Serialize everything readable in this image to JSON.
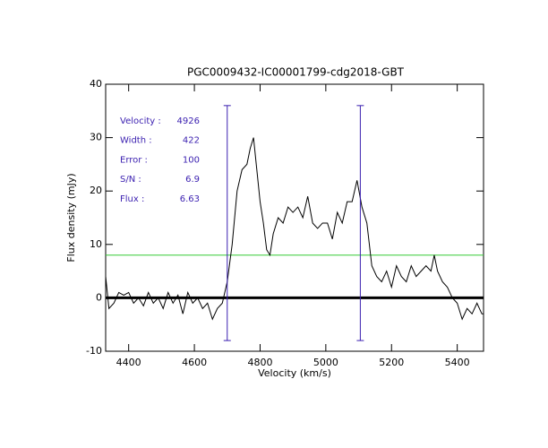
{
  "chart_data": {
    "type": "line",
    "title": "PGC0009432-IC00001799-cdg2018-GBT",
    "x_label": "Velocity (km/s)",
    "y_label": "Flux density (mJy)",
    "xlim": [
      4330,
      5480
    ],
    "ylim": [
      -10,
      40
    ],
    "xticks": [
      4400,
      4600,
      4800,
      5000,
      5200,
      5400
    ],
    "yticks": [
      -10,
      0,
      10,
      20,
      30,
      40
    ],
    "series": [
      {
        "color": "#000000",
        "x": [
          4330,
          4340,
          4355,
          4370,
          4385,
          4400,
          4415,
          4430,
          4445,
          4460,
          4475,
          4490,
          4505,
          4520,
          4535,
          4550,
          4565,
          4580,
          4595,
          4610,
          4625,
          4640,
          4655,
          4670,
          4685,
          4700,
          4715,
          4730,
          4745,
          4760,
          4770,
          4780,
          4790,
          4800,
          4810,
          4820,
          4830,
          4840,
          4855,
          4870,
          4885,
          4900,
          4915,
          4930,
          4945,
          4960,
          4975,
          4990,
          5005,
          5020,
          5035,
          5050,
          5065,
          5080,
          5095,
          5110,
          5125,
          5140,
          5155,
          5170,
          5185,
          5200,
          5215,
          5230,
          5245,
          5260,
          5275,
          5290,
          5305,
          5320,
          5330,
          5340,
          5355,
          5370,
          5385,
          5400,
          5415,
          5430,
          5445,
          5460,
          5475,
          5480
        ],
        "values": [
          4,
          -2,
          -1,
          1,
          0.5,
          1,
          -1,
          0,
          -1.5,
          1,
          -1,
          0,
          -2,
          1,
          -1,
          0.5,
          -3,
          1,
          -1,
          0,
          -2,
          -1,
          -4,
          -2,
          -1,
          3,
          10,
          20,
          24,
          25,
          28,
          30,
          24,
          18,
          14,
          9,
          8,
          12,
          15,
          14,
          17,
          16,
          17,
          15,
          19,
          14,
          13,
          14,
          14,
          11,
          16,
          14,
          18,
          18,
          22,
          17,
          14,
          6,
          4,
          3,
          5,
          2,
          6,
          4,
          3,
          6,
          4,
          5,
          6,
          5,
          8,
          5,
          3,
          2,
          0,
          -1,
          -4,
          -2,
          -3,
          -1,
          -3,
          -3
        ]
      }
    ],
    "hlines": [
      {
        "value": 8,
        "color": "#33cc33"
      },
      {
        "value": 0,
        "color": "#000000"
      }
    ],
    "vlines": {
      "color": "#3a1fb0",
      "x": [
        4700,
        5105
      ],
      "range": [
        -8,
        36
      ]
    },
    "annotations": [
      {
        "label": "Velocity :",
        "value": "4926"
      },
      {
        "label": "Width :",
        "value": "422"
      },
      {
        "label": "Error :",
        "value": "100"
      },
      {
        "label": "S/N :",
        "value": "6.9"
      },
      {
        "label": "Flux :",
        "value": "6.63"
      }
    ]
  }
}
